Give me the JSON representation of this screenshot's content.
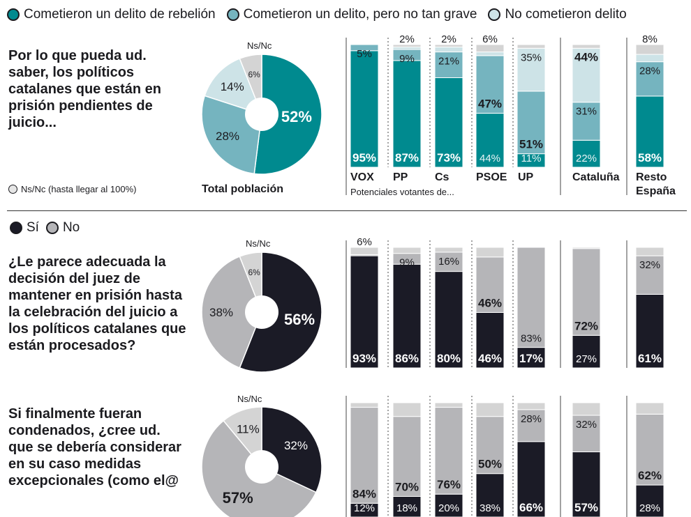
{
  "colors": {
    "rebelion": "#008a8f",
    "no_tan_grave": "#75b4bf",
    "no_delito": "#cde3e7",
    "nsnc": "#d4d4d4",
    "si": "#1b1b26",
    "no": "#b5b5b8"
  },
  "legend_top": {
    "items": [
      "Cometieron un delito de rebelión",
      "Cometieron un delito, pero no tan grave",
      "No cometieron delito"
    ]
  },
  "legend_mid": {
    "items": [
      "Sí",
      "No"
    ]
  },
  "nsnc_note": "Ns/Nc (hasta llegar al 100%)",
  "questions": {
    "q1": "Por lo que pueda ud. saber, los políticos catalanes que están en prisión pendientes de juicio...",
    "q2": "¿Le parece adecuada la decisión del juez de mantener en prisión hasta la celebración del juicio a los políticos catalanes que están procesados?",
    "q3": "Si finalmente fueran condenados, ¿cree ud. que se debería considerar en su caso medidas excepcionales (como el@"
  },
  "labels": {
    "nsnc": "Ns/Nc",
    "total_poblacion": "Total población",
    "potenciales": "Potenciales votantes de..."
  },
  "group_labels": [
    "VOX",
    "PP",
    "Cs",
    "PSOE",
    "UP",
    "Cataluña",
    "Resto",
    "España"
  ],
  "chart_data": [
    {
      "type": "pie",
      "title": "Total población",
      "slices": [
        {
          "label": "Cometieron un delito de rebelión",
          "value": 52
        },
        {
          "label": "Cometieron un delito, pero no tan grave",
          "value": 28
        },
        {
          "label": "No cometieron delito",
          "value": 14
        },
        {
          "label": "Ns/Nc",
          "value": 6
        }
      ],
      "value_labels": [
        "52%",
        "28%",
        "14%",
        "6%"
      ]
    },
    {
      "type": "bar",
      "stacked": true,
      "categories": [
        "VOX",
        "PP",
        "Cs",
        "PSOE",
        "UP",
        "Cataluña",
        "Resto España"
      ],
      "series": [
        {
          "name": "Cometieron un delito de rebelión",
          "values": [
            95,
            87,
            73,
            44,
            11,
            22,
            58
          ]
        },
        {
          "name": "Cometieron un delito, pero no tan grave",
          "values": [
            5,
            9,
            21,
            47,
            51,
            31,
            28
          ]
        },
        {
          "name": "No cometieron delito",
          "values": [
            0,
            2,
            4,
            3,
            35,
            44,
            6
          ]
        },
        {
          "name": "Ns/Nc",
          "values": [
            0,
            2,
            2,
            6,
            3,
            3,
            8
          ]
        }
      ],
      "value_labels": [
        [
          "95%",
          "5%",
          "",
          ""
        ],
        [
          "87%",
          "9%",
          "",
          "2%"
        ],
        [
          "73%",
          "21%",
          "",
          "2%"
        ],
        [
          "44%",
          "47%",
          "",
          "6%"
        ],
        [
          "11%",
          "51%",
          "35%",
          ""
        ],
        [
          "22%",
          "31%",
          "44%",
          ""
        ],
        [
          "58%",
          "28%",
          "",
          "8%"
        ]
      ],
      "ylim": [
        0,
        100
      ]
    },
    {
      "type": "pie",
      "slices": [
        {
          "label": "Sí",
          "value": 56
        },
        {
          "label": "No",
          "value": 38
        },
        {
          "label": "Ns/Nc",
          "value": 6
        }
      ],
      "value_labels": [
        "56%",
        "38%",
        "6%"
      ]
    },
    {
      "type": "bar",
      "stacked": true,
      "categories": [
        "VOX",
        "PP",
        "Cs",
        "PSOE",
        "UP",
        "Cataluña",
        "Resto España"
      ],
      "series": [
        {
          "name": "Sí",
          "values": [
            93,
            86,
            80,
            46,
            17,
            27,
            61
          ]
        },
        {
          "name": "No",
          "values": [
            1,
            9,
            16,
            46,
            83,
            72,
            32
          ]
        },
        {
          "name": "Ns/Nc",
          "values": [
            6,
            5,
            4,
            8,
            0,
            1,
            7
          ]
        }
      ],
      "value_labels": [
        [
          "93%",
          "",
          "6%"
        ],
        [
          "86%",
          "9%",
          ""
        ],
        [
          "80%",
          "16%",
          ""
        ],
        [
          "46%",
          "46%",
          ""
        ],
        [
          "17%",
          "83%",
          ""
        ],
        [
          "27%",
          "72%",
          ""
        ],
        [
          "61%",
          "32%",
          ""
        ]
      ],
      "ylim": [
        0,
        100
      ]
    },
    {
      "type": "pie",
      "slices": [
        {
          "label": "Sí",
          "value": 32
        },
        {
          "label": "No",
          "value": 57
        },
        {
          "label": "Ns/Nc",
          "value": 11
        }
      ],
      "value_labels": [
        "32%",
        "57%",
        "11%"
      ]
    },
    {
      "type": "bar",
      "stacked": true,
      "categories": [
        "VOX",
        "PP",
        "Cs",
        "PSOE",
        "UP",
        "Cataluña",
        "Resto España"
      ],
      "series": [
        {
          "name": "Sí",
          "values": [
            12,
            18,
            20,
            38,
            66,
            57,
            28
          ]
        },
        {
          "name": "No",
          "values": [
            84,
            70,
            76,
            50,
            28,
            32,
            62
          ]
        },
        {
          "name": "Ns/Nc",
          "values": [
            4,
            12,
            4,
            12,
            6,
            11,
            10
          ]
        }
      ],
      "value_labels": [
        [
          "12%",
          "84%",
          ""
        ],
        [
          "18%",
          "70%",
          ""
        ],
        [
          "20%",
          "76%",
          ""
        ],
        [
          "38%",
          "50%",
          ""
        ],
        [
          "66%",
          "28%",
          ""
        ],
        [
          "57%",
          "32%",
          ""
        ],
        [
          "28%",
          "62%",
          ""
        ]
      ],
      "ylim": [
        0,
        100
      ]
    }
  ]
}
